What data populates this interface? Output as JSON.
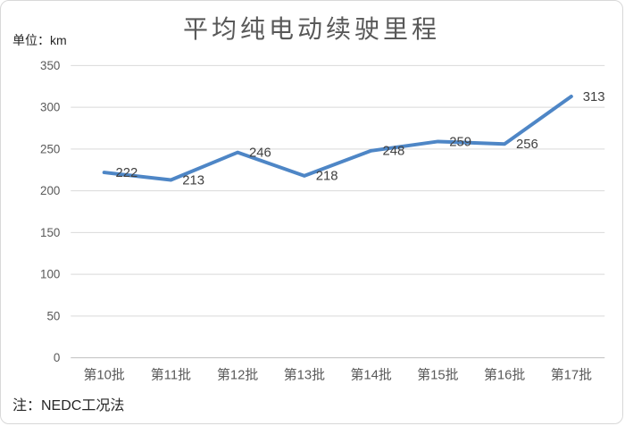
{
  "chart_data": {
    "type": "line",
    "title": "平均纯电动续驶里程",
    "unit_label": "单位：km",
    "note": "注：NEDC工况法",
    "categories": [
      "第10批",
      "第11批",
      "第12批",
      "第13批",
      "第14批",
      "第15批",
      "第16批",
      "第17批"
    ],
    "series": [
      {
        "name": "平均纯电动续驶里程",
        "values": [
          222,
          213,
          246,
          218,
          248,
          259,
          256,
          313
        ]
      }
    ],
    "yticks": [
      0,
      50,
      100,
      150,
      200,
      250,
      300,
      350
    ],
    "ylim": [
      0,
      350
    ],
    "grid": true,
    "legend": "none",
    "line_color": "#4E86C6",
    "grid_color": "#D9D9D9",
    "axis_color": "#BFBFBF",
    "tick_color": "#595959",
    "label_color": "#404040",
    "title_color": "#595959"
  }
}
